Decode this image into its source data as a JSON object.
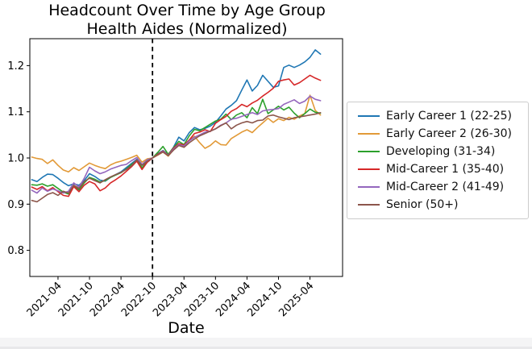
{
  "chart_data": {
    "type": "line",
    "title": "Headcount Over Time by Age Group",
    "subtitle": "Health Aides (Normalized)",
    "xlabel": "Date",
    "ylabel": "",
    "grid": false,
    "legend_position": "right-outside",
    "ylim": [
      0.74,
      1.26
    ],
    "yticks": [
      "0.8",
      "0.9",
      "1.0",
      "1.1",
      "1.2"
    ],
    "ytick_values": [
      0.8,
      0.9,
      1.0,
      1.1,
      1.2
    ],
    "xticks": [
      {
        "index": 5,
        "label": "2021-04"
      },
      {
        "index": 11,
        "label": "2021-10"
      },
      {
        "index": 17,
        "label": "2022-04"
      },
      {
        "index": 23,
        "label": "2022-10"
      },
      {
        "index": 29,
        "label": "2023-04"
      },
      {
        "index": 35,
        "label": "2023-10"
      },
      {
        "index": 41,
        "label": "2024-04"
      },
      {
        "index": 47,
        "label": "2024-10"
      },
      {
        "index": 53,
        "label": "2025-04"
      }
    ],
    "x": [
      "2020-11",
      "2020-12",
      "2021-01",
      "2021-02",
      "2021-03",
      "2021-04",
      "2021-05",
      "2021-06",
      "2021-07",
      "2021-08",
      "2021-09",
      "2021-10",
      "2021-11",
      "2021-12",
      "2022-01",
      "2022-02",
      "2022-03",
      "2022-04",
      "2022-05",
      "2022-06",
      "2022-07",
      "2022-08",
      "2022-09",
      "2022-10",
      "2022-11",
      "2022-12",
      "2023-01",
      "2023-02",
      "2023-03",
      "2023-04",
      "2023-05",
      "2023-06",
      "2023-07",
      "2023-08",
      "2023-09",
      "2023-10",
      "2023-11",
      "2023-12",
      "2024-01",
      "2024-02",
      "2024-03",
      "2024-04",
      "2024-05",
      "2024-06",
      "2024-07",
      "2024-08",
      "2024-09",
      "2024-10",
      "2024-11",
      "2024-12",
      "2025-01",
      "2025-02",
      "2025-03",
      "2025-04",
      "2025-05",
      "2025-06"
    ],
    "vline": {
      "x_index": 23,
      "x_label": "2022-10",
      "style": "dashed",
      "color": "#000000"
    },
    "normalization_value": 1.0,
    "series": [
      {
        "name": "Early Career 1 (22-25)",
        "color": "#1f77b4",
        "values": [
          0.953,
          0.949,
          0.958,
          0.965,
          0.964,
          0.956,
          0.947,
          0.94,
          0.944,
          0.941,
          0.951,
          0.966,
          0.96,
          0.952,
          0.95,
          0.958,
          0.964,
          0.97,
          0.979,
          0.988,
          0.997,
          0.978,
          0.991,
          1.0,
          1.009,
          1.016,
          1.007,
          1.023,
          1.045,
          1.037,
          1.055,
          1.066,
          1.061,
          1.064,
          1.069,
          1.077,
          1.091,
          1.106,
          1.114,
          1.124,
          1.147,
          1.169,
          1.145,
          1.157,
          1.179,
          1.166,
          1.153,
          1.156,
          1.196,
          1.201,
          1.196,
          1.201,
          1.208,
          1.218,
          1.234,
          1.225
        ]
      },
      {
        "name": "Early Career 2 (26-30)",
        "color": "#e29a38",
        "values": [
          1.002,
          0.999,
          0.997,
          0.988,
          0.996,
          0.984,
          0.974,
          0.97,
          0.979,
          0.973,
          0.981,
          0.989,
          0.984,
          0.98,
          0.977,
          0.985,
          0.99,
          0.993,
          0.997,
          1.001,
          1.006,
          0.991,
          0.998,
          1.0,
          1.006,
          1.013,
          1.004,
          1.018,
          1.03,
          1.024,
          1.039,
          1.047,
          1.033,
          1.021,
          1.027,
          1.037,
          1.029,
          1.028,
          1.042,
          1.049,
          1.056,
          1.061,
          1.055,
          1.066,
          1.076,
          1.086,
          1.077,
          1.085,
          1.081,
          1.088,
          1.084,
          1.091,
          1.096,
          1.136,
          1.103,
          1.093
        ]
      },
      {
        "name": "Developing (31-34)",
        "color": "#2ca02c",
        "values": [
          0.942,
          0.941,
          0.944,
          0.939,
          0.942,
          0.934,
          0.926,
          0.922,
          0.94,
          0.931,
          0.946,
          0.958,
          0.954,
          0.948,
          0.951,
          0.958,
          0.963,
          0.968,
          0.976,
          0.986,
          0.994,
          0.979,
          0.992,
          1.0,
          1.012,
          1.025,
          1.008,
          1.022,
          1.036,
          1.029,
          1.048,
          1.062,
          1.059,
          1.066,
          1.073,
          1.08,
          1.084,
          1.095,
          1.083,
          1.093,
          1.098,
          1.087,
          1.109,
          1.096,
          1.127,
          1.096,
          1.104,
          1.112,
          1.104,
          1.11,
          1.097,
          1.087,
          1.096,
          1.106,
          1.099,
          1.097
        ]
      },
      {
        "name": "Mid-Career 1 (35-40)",
        "color": "#d62728",
        "values": [
          0.937,
          0.932,
          0.938,
          0.929,
          0.936,
          0.927,
          0.919,
          0.917,
          0.938,
          0.927,
          0.941,
          0.949,
          0.944,
          0.929,
          0.935,
          0.946,
          0.953,
          0.961,
          0.971,
          0.981,
          0.993,
          0.975,
          0.991,
          1.0,
          1.008,
          1.015,
          1.006,
          1.021,
          1.031,
          1.028,
          1.039,
          1.053,
          1.056,
          1.061,
          1.057,
          1.075,
          1.083,
          1.09,
          1.101,
          1.107,
          1.116,
          1.111,
          1.119,
          1.125,
          1.134,
          1.142,
          1.151,
          1.166,
          1.169,
          1.171,
          1.158,
          1.163,
          1.171,
          1.179,
          1.173,
          1.168
        ]
      },
      {
        "name": "Mid-Career 2 (41-49)",
        "color": "#9467bd",
        "values": [
          0.93,
          0.924,
          0.935,
          0.928,
          0.933,
          0.929,
          0.924,
          0.928,
          0.946,
          0.937,
          0.956,
          0.98,
          0.972,
          0.966,
          0.97,
          0.976,
          0.98,
          0.984,
          0.986,
          0.994,
          1.001,
          0.986,
          0.996,
          1.0,
          1.007,
          1.014,
          1.006,
          1.019,
          1.029,
          1.026,
          1.037,
          1.045,
          1.05,
          1.056,
          1.058,
          1.063,
          1.071,
          1.076,
          1.084,
          1.086,
          1.09,
          1.094,
          1.098,
          1.094,
          1.102,
          1.104,
          1.105,
          1.107,
          1.116,
          1.121,
          1.126,
          1.118,
          1.123,
          1.134,
          1.127,
          1.124
        ]
      },
      {
        "name": "Senior (50+)",
        "color": "#8c564b",
        "values": [
          0.908,
          0.905,
          0.913,
          0.921,
          0.925,
          0.919,
          0.928,
          0.924,
          0.941,
          0.934,
          0.949,
          0.956,
          0.951,
          0.946,
          0.953,
          0.959,
          0.964,
          0.969,
          0.975,
          0.983,
          0.996,
          0.984,
          0.993,
          1.0,
          1.007,
          1.013,
          1.005,
          1.017,
          1.027,
          1.023,
          1.033,
          1.041,
          1.048,
          1.053,
          1.058,
          1.063,
          1.07,
          1.076,
          1.063,
          1.071,
          1.076,
          1.079,
          1.076,
          1.081,
          1.082,
          1.091,
          1.093,
          1.089,
          1.086,
          1.083,
          1.087,
          1.089,
          1.091,
          1.093,
          1.095,
          1.098
        ]
      }
    ]
  }
}
